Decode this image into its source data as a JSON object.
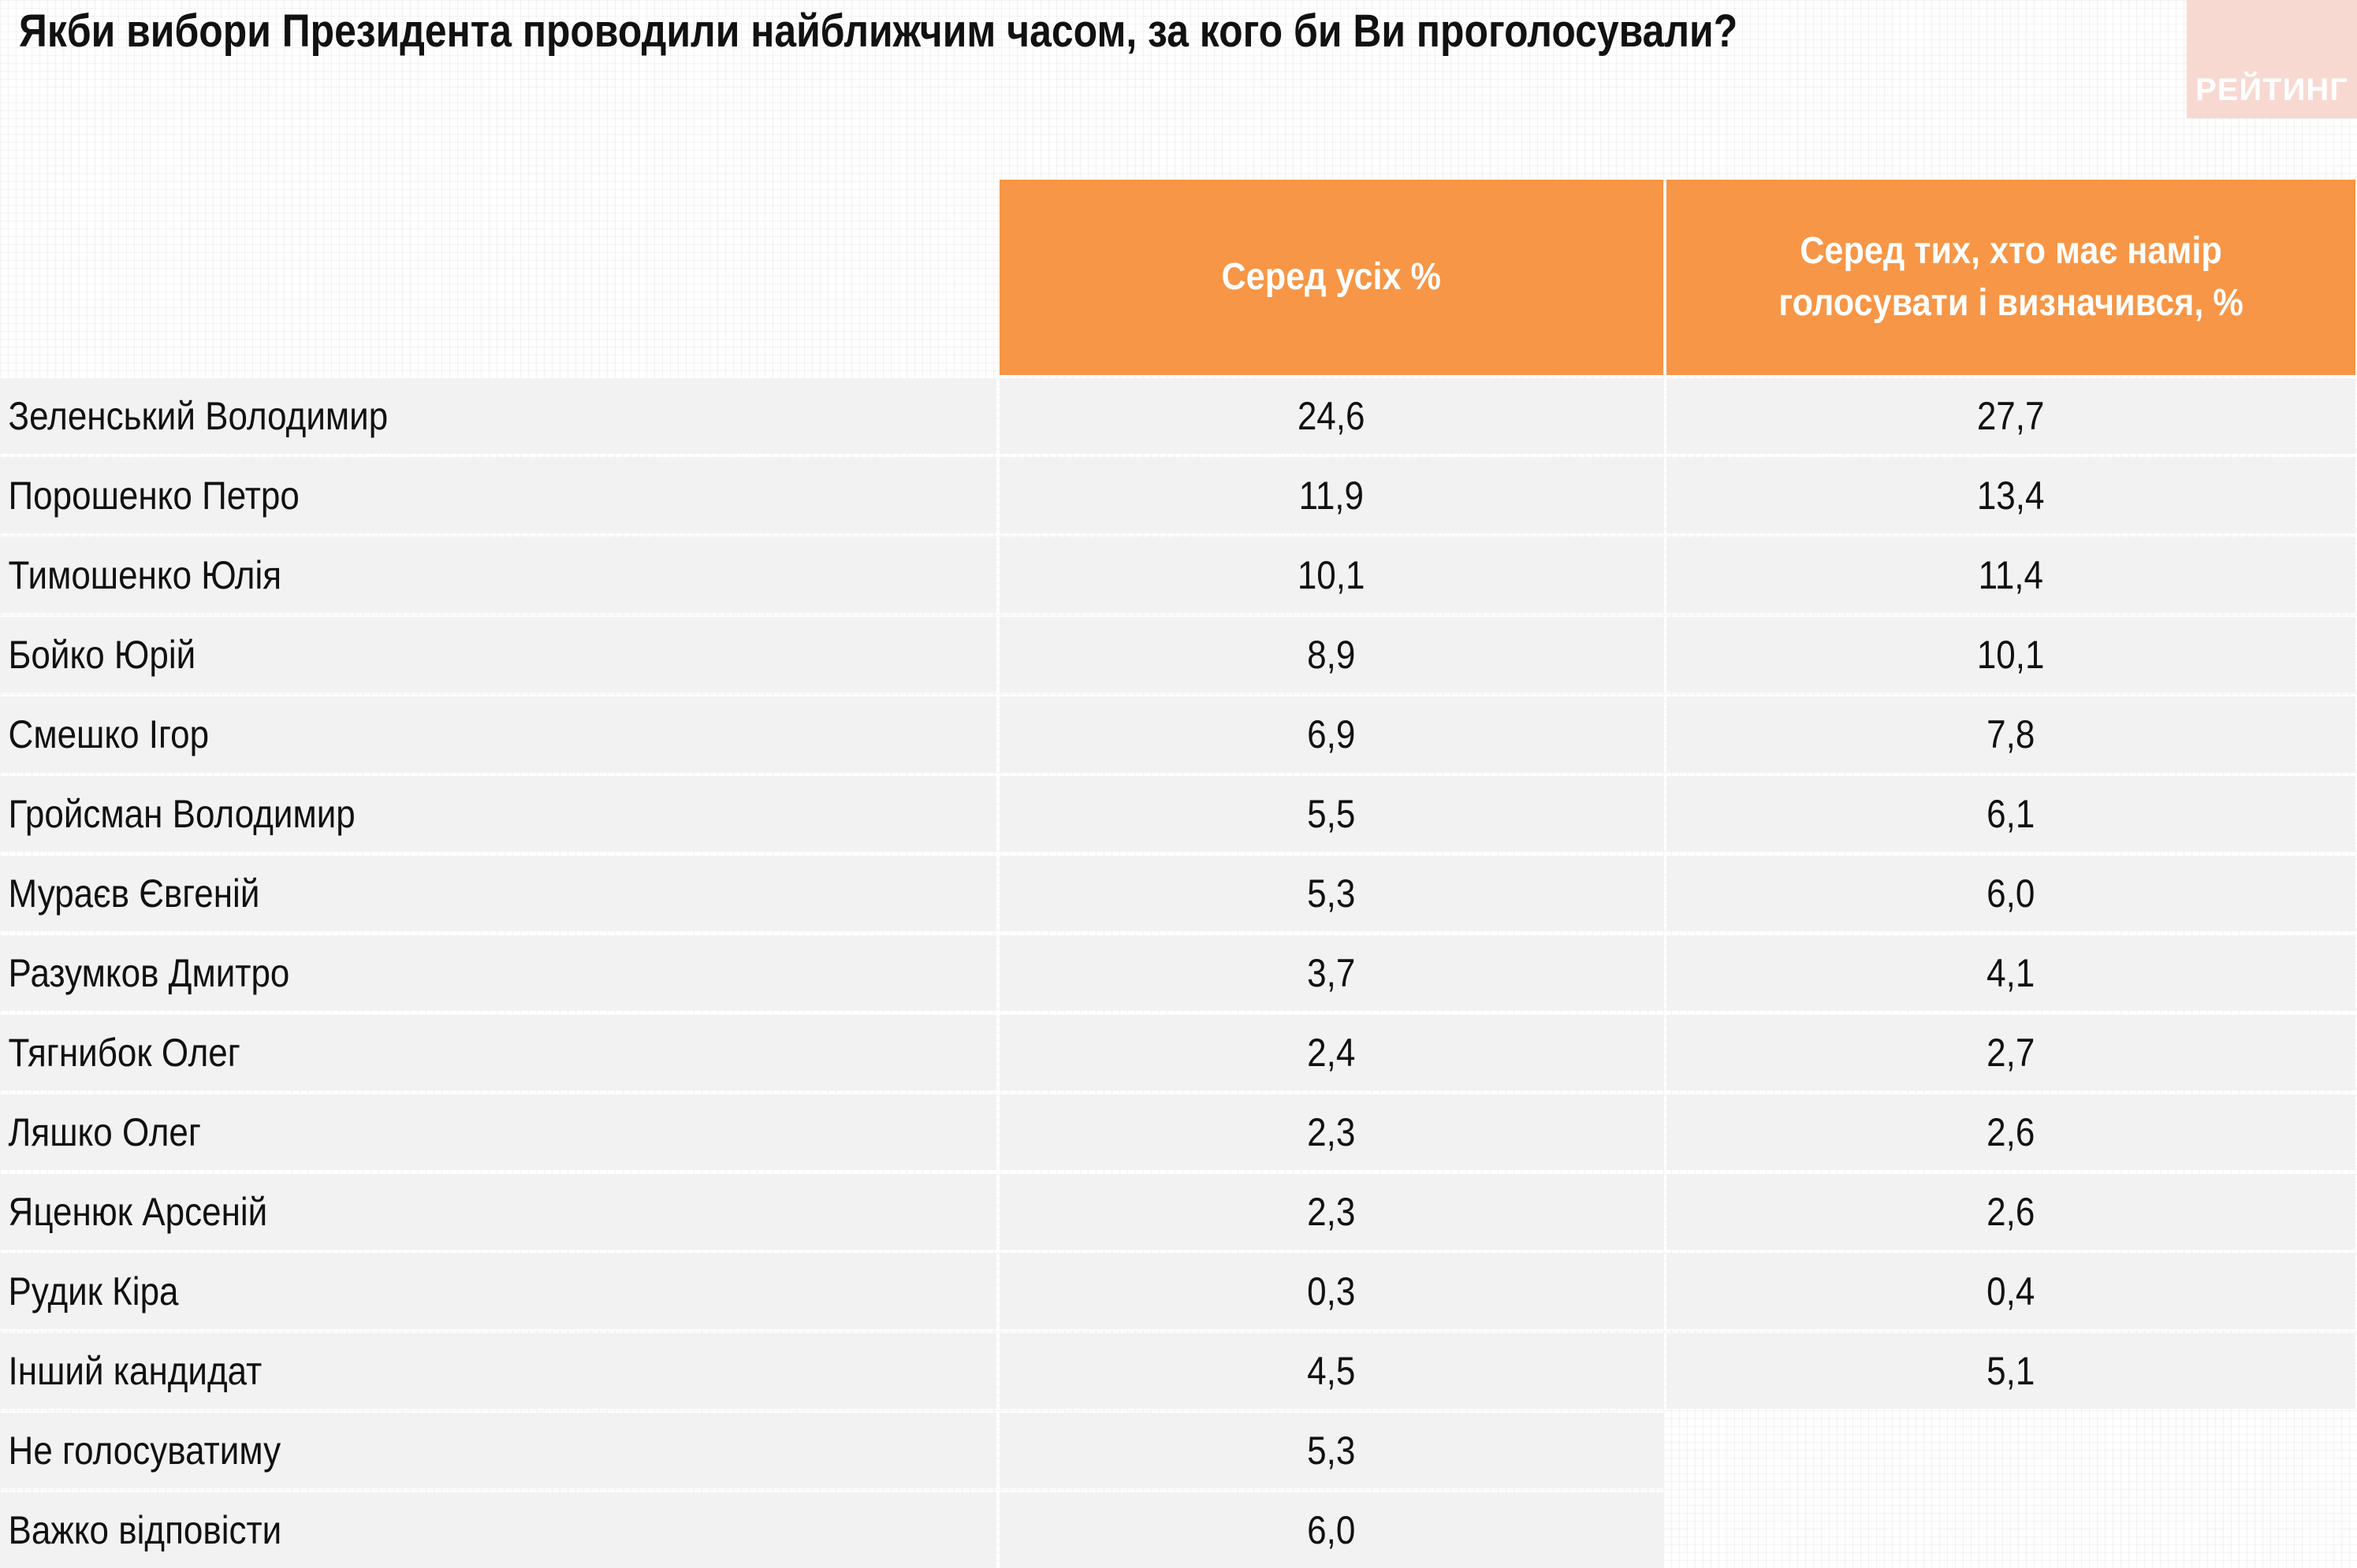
{
  "title": "Якби вибори Президента проводили найближчим часом, за кого би Ви проголосували?",
  "logo": {
    "text": "РЕЙТИНГ"
  },
  "chart_data": {
    "type": "table",
    "columns": [
      "Серед усіх %",
      "Серед тих, хто має намір голосувати і визначився, %"
    ],
    "rows": [
      {
        "name": "Зеленський Володимир",
        "values": [
          "24,6",
          "27,7"
        ]
      },
      {
        "name": "Порошенко Петро",
        "values": [
          "11,9",
          "13,4"
        ]
      },
      {
        "name": "Тимошенко Юлія",
        "values": [
          "10,1",
          "11,4"
        ]
      },
      {
        "name": "Бойко Юрій",
        "values": [
          "8,9",
          "10,1"
        ]
      },
      {
        "name": "Смешко Ігор",
        "values": [
          "6,9",
          "7,8"
        ]
      },
      {
        "name": "Гройсман Володимир",
        "values": [
          "5,5",
          "6,1"
        ]
      },
      {
        "name": "Мураєв Євгеній",
        "values": [
          "5,3",
          "6,0"
        ]
      },
      {
        "name": "Разумков Дмитро",
        "values": [
          "3,7",
          "4,1"
        ]
      },
      {
        "name": "Тягнибок Олег",
        "values": [
          "2,4",
          "2,7"
        ]
      },
      {
        "name": "Ляшко Олег",
        "values": [
          "2,3",
          "2,6"
        ]
      },
      {
        "name": "Яценюк  Арсеній",
        "values": [
          "2,3",
          "2,6"
        ]
      },
      {
        "name": "Рудик Кіра",
        "values": [
          "0,3",
          "0,4"
        ]
      },
      {
        "name": "Інший кандидат",
        "values": [
          "4,5",
          "5,1"
        ]
      },
      {
        "name": "Не голосуватиму",
        "values": [
          "5,3",
          null
        ]
      },
      {
        "name": "Важко відповісти",
        "values": [
          "6,0",
          null
        ]
      }
    ]
  }
}
